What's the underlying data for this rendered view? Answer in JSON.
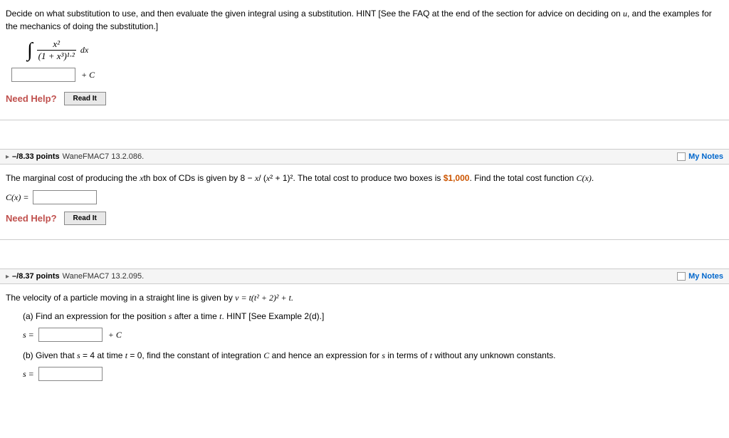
{
  "q1": {
    "prompt_a": "Decide on what substitution to use, and then evaluate the given integral using a substitution. HINT [See the FAQ at the end of the section for advice on deciding on ",
    "prompt_u": "u",
    "prompt_b": ", and the examples for the mechanics of doing the substitution.]",
    "numerator": "x²",
    "denominator": "(1 + x³)¹·²",
    "dx": "dx",
    "plus_c": "+ C",
    "need_help": "Need Help?",
    "read_it": "Read It"
  },
  "q2": {
    "points": "–/8.33 points",
    "source": "WaneFMAC7 13.2.086.",
    "mynotes": "My Notes",
    "text_a": "The marginal cost of producing the ",
    "text_xth": "x",
    "text_b": "th box of CDs is given by 8 − ",
    "text_expr_x": "x",
    "text_c": "/ (",
    "text_expr_x2": "x",
    "text_d": "² + 1)². The total cost to produce two boxes is ",
    "cost": "$1,000",
    "text_e": ". Find the total cost function ",
    "text_cx": "C(x)",
    "text_f": ".",
    "label": "C(x) =",
    "need_help": "Need Help?",
    "read_it": "Read It"
  },
  "q3": {
    "points": "–/8.37 points",
    "source": "WaneFMAC7 13.2.095.",
    "mynotes": "My Notes",
    "text_a": "The velocity of a particle moving in a straight line is given by ",
    "vel": "v = t(t² + 2)² + t.",
    "part_a": "(a) Find an expression for the position ",
    "s1": "s",
    "part_a2": " after a time ",
    "t1": "t",
    "part_a3": ". HINT [See Example 2(d).]",
    "s_eq": "s =",
    "plus_c": "+ C",
    "part_b": "(b) Given that ",
    "s2": "s",
    "part_b2": " = 4 at time ",
    "t2": "t",
    "part_b3": " = 0, find the constant of integration ",
    "C": "C",
    "part_b4": " and hence an expression for ",
    "s3": "s",
    "part_b5": " in terms of ",
    "t3": "t",
    "part_b6": " without any unknown constants."
  }
}
